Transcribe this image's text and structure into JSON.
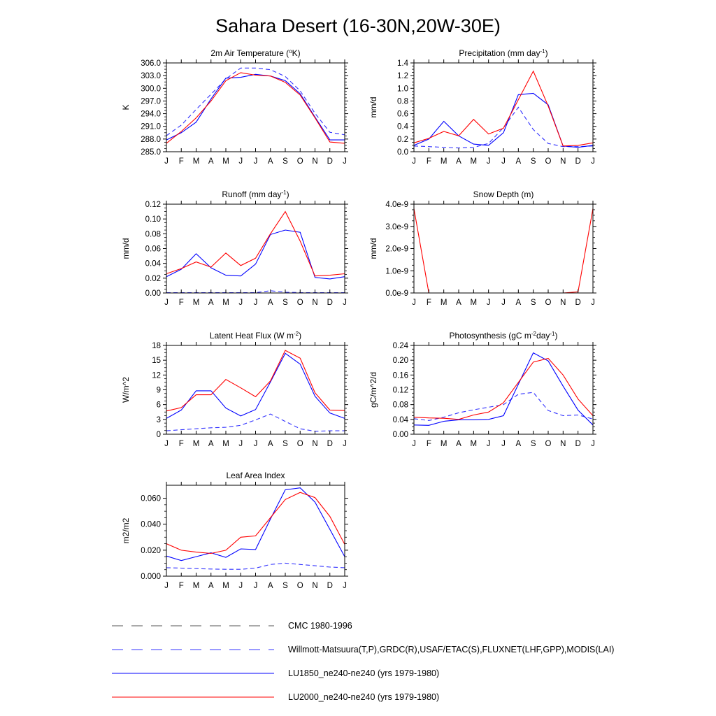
{
  "title": "Sahara Desert (16-30N,20W-30E)",
  "colors": {
    "obs": "#3333ff",
    "lu1850": "#0000ff",
    "lu2000": "#ff0000"
  },
  "legend": [
    {
      "label": "CMC 1980-1996",
      "color": "#555555",
      "dash": true
    },
    {
      "label": "Willmott-Matsuura(T,P),GRDC(R),USAF/ETAC(S),FLUXNET(LHF,GPP),MODIS(LAI)",
      "color": "#3333ff",
      "dash": true
    },
    {
      "label": "LU1850_ne240-ne240 (yrs 1979-1980)",
      "color": "#0000ff",
      "dash": false
    },
    {
      "label": "LU2000_ne240-ne240 (yrs 1979-1980)",
      "color": "#ff0000",
      "dash": false
    }
  ],
  "chart_data": [
    {
      "type": "line",
      "title": "2m Air Temperature (oK)",
      "title_parts": [
        "2m Air Temperature (",
        "o",
        "K)"
      ],
      "ylabel": "K",
      "x": [
        "J",
        "F",
        "M",
        "A",
        "M",
        "J",
        "J",
        "A",
        "S",
        "O",
        "N",
        "D",
        "J"
      ],
      "ylim": [
        285.0,
        306.0
      ],
      "yticks": [
        "285.0",
        "288.0",
        "291.0",
        "294.0",
        "297.0",
        "300.0",
        "303.0",
        "306.0"
      ],
      "series": [
        {
          "name": "Willmott-Matsuura",
          "dash": true,
          "values": [
            288.8,
            291.3,
            295.0,
            298.6,
            302.2,
            304.8,
            304.8,
            304.4,
            302.8,
            299.4,
            294.1,
            289.6,
            289.0
          ]
        },
        {
          "name": "LU1850",
          "dash": false,
          "values": [
            287.8,
            289.5,
            292.0,
            297.5,
            302.4,
            302.6,
            303.3,
            302.9,
            301.8,
            298.7,
            293.2,
            287.8,
            287.8
          ]
        },
        {
          "name": "LU2000",
          "dash": false,
          "values": [
            287.0,
            289.8,
            293.0,
            297.0,
            301.8,
            303.7,
            303.1,
            302.9,
            301.4,
            298.4,
            293.0,
            287.3,
            287.0
          ]
        }
      ]
    },
    {
      "type": "line",
      "title": "Precipitation (mm day-1)",
      "title_parts": [
        "Precipitation (mm day",
        "-1",
        ")"
      ],
      "ylabel": "mm/d",
      "x": [
        "J",
        "F",
        "M",
        "A",
        "M",
        "J",
        "J",
        "A",
        "S",
        "O",
        "N",
        "D",
        "J"
      ],
      "ylim": [
        0.0,
        1.4
      ],
      "yticks": [
        "0.0",
        "0.2",
        "0.4",
        "0.6",
        "0.8",
        "1.0",
        "1.2",
        "1.4"
      ],
      "series": [
        {
          "name": "Willmott-Matsuura",
          "dash": true,
          "values": [
            0.09,
            0.08,
            0.07,
            0.06,
            0.07,
            0.13,
            0.38,
            0.7,
            0.35,
            0.13,
            0.08,
            0.08,
            0.09
          ]
        },
        {
          "name": "LU1850",
          "dash": false,
          "values": [
            0.1,
            0.2,
            0.48,
            0.25,
            0.12,
            0.1,
            0.3,
            0.9,
            0.92,
            0.74,
            0.09,
            0.07,
            0.1
          ]
        },
        {
          "name": "LU2000",
          "dash": false,
          "values": [
            0.14,
            0.21,
            0.32,
            0.25,
            0.51,
            0.28,
            0.37,
            0.82,
            1.27,
            0.72,
            0.09,
            0.1,
            0.14
          ]
        }
      ]
    },
    {
      "type": "line",
      "title": "Runoff (mm day-1)",
      "title_parts": [
        "Runoff (mm day",
        "-1",
        ")"
      ],
      "ylabel": "mm/d",
      "x": [
        "J",
        "F",
        "M",
        "A",
        "M",
        "J",
        "J",
        "A",
        "S",
        "O",
        "N",
        "D",
        "J"
      ],
      "ylim": [
        0.0,
        0.12
      ],
      "yticks": [
        "0.00",
        "0.02",
        "0.04",
        "0.06",
        "0.08",
        "0.10",
        "0.12"
      ],
      "series": [
        {
          "name": "GRDC",
          "dash": true,
          "values": [
            0.0005,
            0.0005,
            0.0005,
            0.0005,
            0.0005,
            0.0005,
            0.0005,
            0.003,
            0.001,
            0.0005,
            0.0005,
            0.0005,
            0.0005
          ]
        },
        {
          "name": "LU1850",
          "dash": false,
          "values": [
            0.022,
            0.032,
            0.053,
            0.034,
            0.024,
            0.023,
            0.039,
            0.079,
            0.085,
            0.082,
            0.021,
            0.019,
            0.022
          ]
        },
        {
          "name": "LU2000",
          "dash": false,
          "values": [
            0.026,
            0.033,
            0.042,
            0.035,
            0.054,
            0.037,
            0.047,
            0.08,
            0.11,
            0.07,
            0.023,
            0.024,
            0.026
          ]
        }
      ]
    },
    {
      "type": "line",
      "title": "Snow Depth (m)",
      "title_parts": [
        "Snow Depth (m)"
      ],
      "ylabel": "mm/d",
      "x": [
        "J",
        "F",
        "M",
        "A",
        "M",
        "J",
        "J",
        "A",
        "S",
        "O",
        "N",
        "D",
        "J"
      ],
      "ylim": [
        0.0,
        4.0
      ],
      "yticks": [
        "0.0e-9",
        "1.0e-9",
        "2.0e-9",
        "3.0e-9",
        "4.0e-9"
      ],
      "series": [
        {
          "name": "USAF/ETAC",
          "dash": true,
          "values": [
            0,
            0,
            0,
            0,
            0,
            0,
            0,
            0,
            0,
            0,
            0,
            0,
            0
          ]
        },
        {
          "name": "LU1850",
          "dash": false,
          "values": [
            0,
            0,
            0,
            0,
            0,
            0,
            0,
            0,
            0,
            0,
            0,
            0,
            0
          ]
        },
        {
          "name": "LU2000",
          "dash": false,
          "values": [
            3.8,
            0,
            0,
            0,
            0,
            0,
            0,
            0,
            0,
            0,
            0,
            0.05,
            3.8
          ]
        }
      ]
    },
    {
      "type": "line",
      "title": "Latent Heat Flux (W m-2)",
      "title_parts": [
        "Latent Heat Flux (W m",
        "-2",
        ")"
      ],
      "ylabel": "W/m^2",
      "x": [
        "J",
        "F",
        "M",
        "A",
        "M",
        "J",
        "J",
        "A",
        "S",
        "O",
        "N",
        "D",
        "J"
      ],
      "ylim": [
        0,
        18
      ],
      "yticks": [
        "0",
        "3",
        "6",
        "9",
        "12",
        "15",
        "18"
      ],
      "series": [
        {
          "name": "FLUXNET",
          "dash": true,
          "values": [
            0.7,
            0.9,
            1.1,
            1.3,
            1.4,
            1.8,
            2.9,
            4.1,
            2.6,
            1.1,
            0.6,
            0.7,
            0.7
          ]
        },
        {
          "name": "LU1850",
          "dash": false,
          "values": [
            3.2,
            4.9,
            8.8,
            8.8,
            5.3,
            3.7,
            5.0,
            10.6,
            16.4,
            14.2,
            7.7,
            4.3,
            3.2
          ]
        },
        {
          "name": "LU2000",
          "dash": false,
          "values": [
            4.7,
            5.4,
            8.0,
            8.0,
            11.1,
            9.4,
            7.6,
            10.8,
            17.0,
            15.4,
            8.4,
            4.9,
            4.8
          ]
        }
      ]
    },
    {
      "type": "line",
      "title": "Photosynthesis (gC m-2day-1)",
      "title_parts": [
        "Photosynthesis (gC m",
        "-2",
        "day",
        "-1",
        ")"
      ],
      "ylabel": "gC/m^2/d",
      "x": [
        "J",
        "F",
        "M",
        "A",
        "M",
        "J",
        "J",
        "A",
        "S",
        "O",
        "N",
        "D",
        "J"
      ],
      "ylim": [
        0.0,
        0.24
      ],
      "yticks": [
        "0.00",
        "0.04",
        "0.08",
        "0.12",
        "0.16",
        "0.20",
        "0.24"
      ],
      "series": [
        {
          "name": "FLUXNET",
          "dash": true,
          "values": [
            0.042,
            0.037,
            0.046,
            0.058,
            0.066,
            0.073,
            0.08,
            0.108,
            0.113,
            0.064,
            0.05,
            0.052,
            0.041
          ]
        },
        {
          "name": "LU1850",
          "dash": false,
          "values": [
            0.025,
            0.024,
            0.035,
            0.039,
            0.039,
            0.04,
            0.05,
            0.135,
            0.22,
            0.198,
            0.13,
            0.065,
            0.025
          ]
        },
        {
          "name": "LU2000",
          "dash": false,
          "values": [
            0.046,
            0.044,
            0.043,
            0.04,
            0.052,
            0.06,
            0.085,
            0.14,
            0.195,
            0.205,
            0.16,
            0.095,
            0.05
          ]
        }
      ]
    },
    {
      "type": "line",
      "title": "Leaf Area Index",
      "title_parts": [
        "Leaf Area Index"
      ],
      "ylabel": "m2/m2",
      "x": [
        "J",
        "F",
        "M",
        "A",
        "M",
        "J",
        "J",
        "A",
        "S",
        "O",
        "N",
        "D",
        "J"
      ],
      "ylim": [
        0.0,
        0.07
      ],
      "yticks": [
        "0.000",
        "0.020",
        "0.040",
        "0.060"
      ],
      "ytick_values": [
        0.0,
        0.02,
        0.04,
        0.06
      ],
      "series": [
        {
          "name": "MODIS",
          "dash": true,
          "values": [
            0.0065,
            0.0062,
            0.0058,
            0.0055,
            0.0053,
            0.0053,
            0.0062,
            0.009,
            0.01,
            0.009,
            0.008,
            0.007,
            0.0065
          ]
        },
        {
          "name": "LU1850",
          "dash": false,
          "values": [
            0.0155,
            0.012,
            0.015,
            0.018,
            0.0145,
            0.021,
            0.0205,
            0.044,
            0.0665,
            0.068,
            0.057,
            0.036,
            0.015
          ]
        },
        {
          "name": "LU2000",
          "dash": false,
          "values": [
            0.025,
            0.02,
            0.0185,
            0.0175,
            0.02,
            0.03,
            0.031,
            0.045,
            0.059,
            0.0645,
            0.0605,
            0.046,
            0.0245
          ]
        }
      ]
    }
  ]
}
